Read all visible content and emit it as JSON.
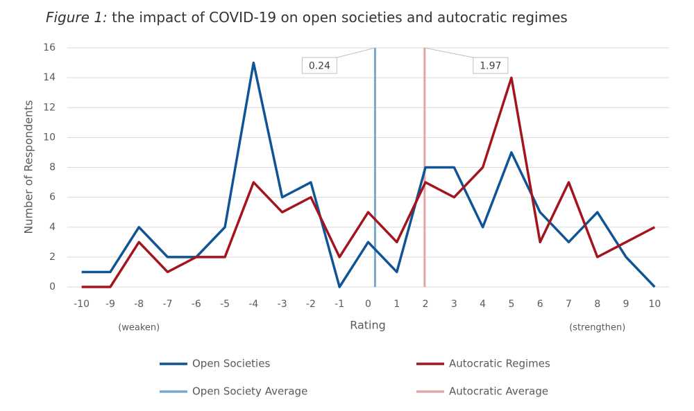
{
  "chart_data": {
    "type": "line",
    "title_prefix": "Figure 1:",
    "title": "the impact of COVID-19 on open societies and autocratic regimes",
    "x_label": "Rating",
    "y_label": "Number of Respondents",
    "x_annotations": [
      {
        "x": -8,
        "text": "(weaken)"
      },
      {
        "x": 8,
        "text": "(strengthen)"
      }
    ],
    "x": [
      -10,
      -9,
      -8,
      -7,
      -6,
      -5,
      -4,
      -3,
      -2,
      -1,
      0,
      1,
      2,
      3,
      4,
      5,
      6,
      7,
      8,
      9,
      10
    ],
    "series": [
      {
        "name": "Open Societies",
        "color": "#0f5596",
        "values": [
          1,
          1,
          4,
          2,
          2,
          4,
          15,
          6,
          7,
          0,
          3,
          1,
          8,
          8,
          4,
          9,
          5,
          3,
          5,
          2,
          0
        ]
      },
      {
        "name": "Autocratic Regimes",
        "color": "#a3141c",
        "values": [
          0,
          0,
          3,
          1,
          2,
          2,
          7,
          5,
          6,
          2,
          5,
          3,
          7,
          6,
          8,
          14,
          3,
          7,
          2,
          3,
          4
        ]
      }
    ],
    "averages": [
      {
        "name": "Open Society Average",
        "color": "#7aa7cd",
        "value": 0.24
      },
      {
        "name": "Autocratic Average",
        "color": "#e2a5a6",
        "value": 1.97
      }
    ],
    "xlim": [
      -10.5,
      10.5
    ],
    "xticks": [
      -10,
      -9,
      -8,
      -7,
      -6,
      -5,
      -4,
      -3,
      -2,
      -1,
      0,
      1,
      2,
      3,
      4,
      5,
      6,
      7,
      8,
      9,
      10
    ],
    "ylim": [
      0,
      16
    ],
    "yticks": [
      0,
      2,
      4,
      6,
      8,
      10,
      12,
      14,
      16
    ],
    "grid": true
  }
}
